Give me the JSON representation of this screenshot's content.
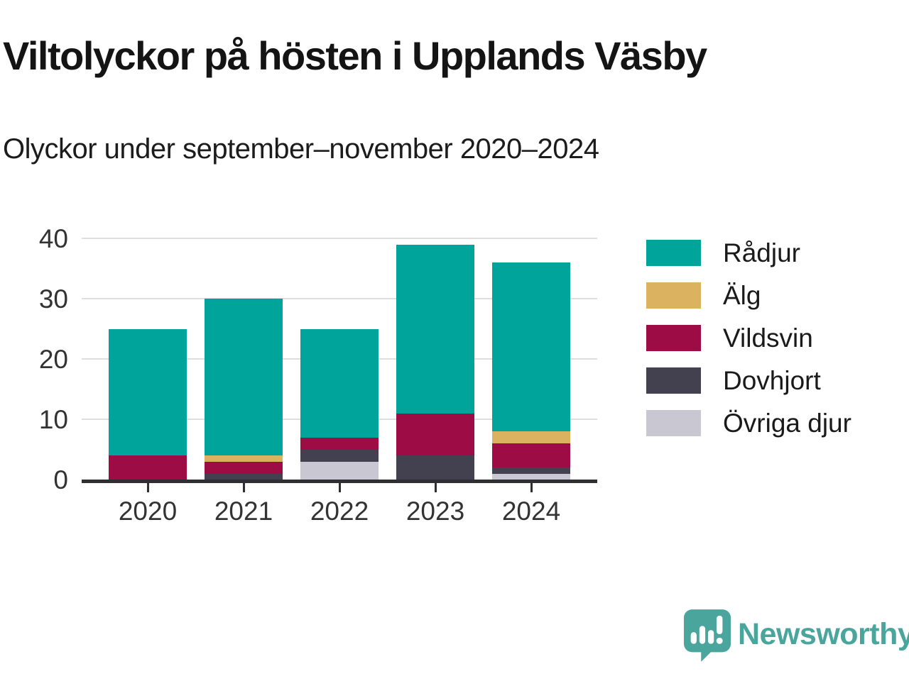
{
  "chart_data": {
    "type": "bar",
    "stacked": true,
    "title": "Viltolyckor på hösten i Upplands Väsby",
    "subtitle": "Olyckor under september–november 2020–2024",
    "categories": [
      "2020",
      "2021",
      "2022",
      "2023",
      "2024"
    ],
    "series": [
      {
        "name": "Rådjur",
        "color": "#00a49b",
        "values": [
          21,
          26,
          18,
          28,
          28
        ]
      },
      {
        "name": "Älg",
        "color": "#dbb25f",
        "values": [
          0,
          1,
          0,
          0,
          2
        ]
      },
      {
        "name": "Vildsvin",
        "color": "#9e0c46",
        "values": [
          4,
          2,
          2,
          7,
          4
        ]
      },
      {
        "name": "Dovhjort",
        "color": "#434050",
        "values": [
          0,
          1,
          2,
          4,
          1
        ]
      },
      {
        "name": "Övriga djur",
        "color": "#c9c7d2",
        "values": [
          0,
          0,
          3,
          0,
          1
        ]
      }
    ],
    "totals": [
      25,
      30,
      25,
      39,
      36
    ],
    "stack_order_bottom_to_top": [
      "Övriga djur",
      "Dovhjort",
      "Vildsvin",
      "Älg",
      "Rådjur"
    ],
    "ylim": [
      0,
      40
    ],
    "yticks": [
      0,
      10,
      20,
      30,
      40
    ],
    "grid": true,
    "legend_position": "right",
    "axis_color": "#2f2e33",
    "grid_color": "#dedede"
  },
  "branding": {
    "logo_text": "Newsworthy",
    "logo_color": "#4aa59d"
  }
}
